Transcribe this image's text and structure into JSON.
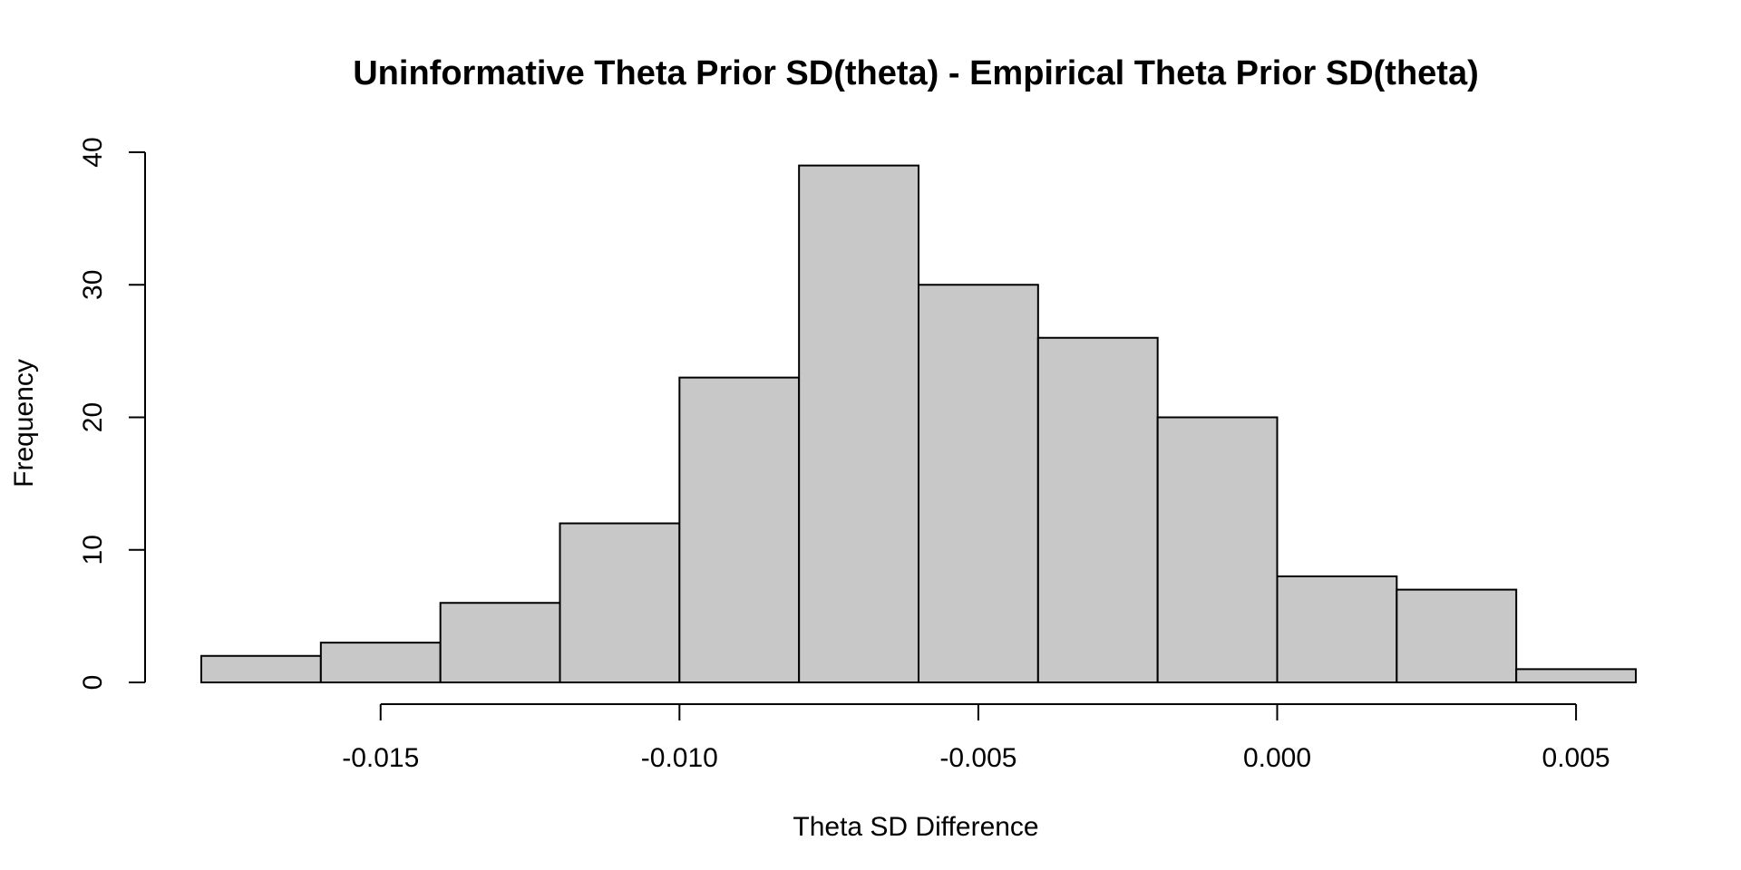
{
  "chart_data": {
    "type": "bar",
    "title": "Uninformative Theta Prior SD(theta) - Empirical Theta Prior SD(theta)",
    "xlabel": "Theta SD Difference",
    "ylabel": "Frequency",
    "bin_edges": [
      -0.018,
      -0.016,
      -0.014,
      -0.012,
      -0.01,
      -0.008,
      -0.006,
      -0.004,
      -0.002,
      0.0,
      0.002,
      0.004,
      0.006
    ],
    "values": [
      2,
      3,
      6,
      12,
      23,
      39,
      30,
      26,
      20,
      8,
      7,
      1
    ],
    "bar_color": "#c8c8c8",
    "x_ticks": [
      -0.015,
      -0.01,
      -0.005,
      0.0,
      0.005
    ],
    "x_tick_labels": [
      "-0.015",
      "-0.010",
      "-0.005",
      "0.000",
      "0.005"
    ],
    "y_ticks": [
      0,
      10,
      20,
      30,
      40
    ],
    "y_tick_labels": [
      "0",
      "10",
      "20",
      "30",
      "40"
    ],
    "xlim": [
      -0.018,
      0.006
    ],
    "ylim": [
      0,
      40
    ],
    "grid": false,
    "legend": "none"
  }
}
